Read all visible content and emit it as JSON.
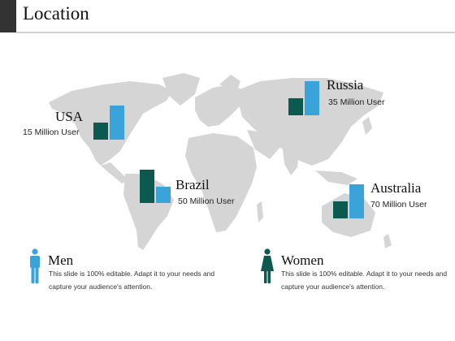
{
  "slide": {
    "title": "Location"
  },
  "locations": [
    {
      "name": "USA",
      "users": "15 Million User"
    },
    {
      "name": "Russia",
      "users": "35 Million User"
    },
    {
      "name": "Brazil",
      "users": "50 Million User"
    },
    {
      "name": "Australia",
      "users": "70 Million User"
    }
  ],
  "legend": {
    "men": {
      "title": "Men",
      "text": "This slide is 100% editable. Adapt it to your needs and capture your audience's attention."
    },
    "women": {
      "title": "Women",
      "text": "This slide is 100% editable. Adapt it to your needs and capture your audience's attention."
    }
  },
  "colors": {
    "dark_bar": "#0c5a4f",
    "light_bar": "#3aa3d9",
    "map": "#d5d5d5",
    "accent": "#333333"
  },
  "icons": [
    "man-icon",
    "woman-icon"
  ]
}
